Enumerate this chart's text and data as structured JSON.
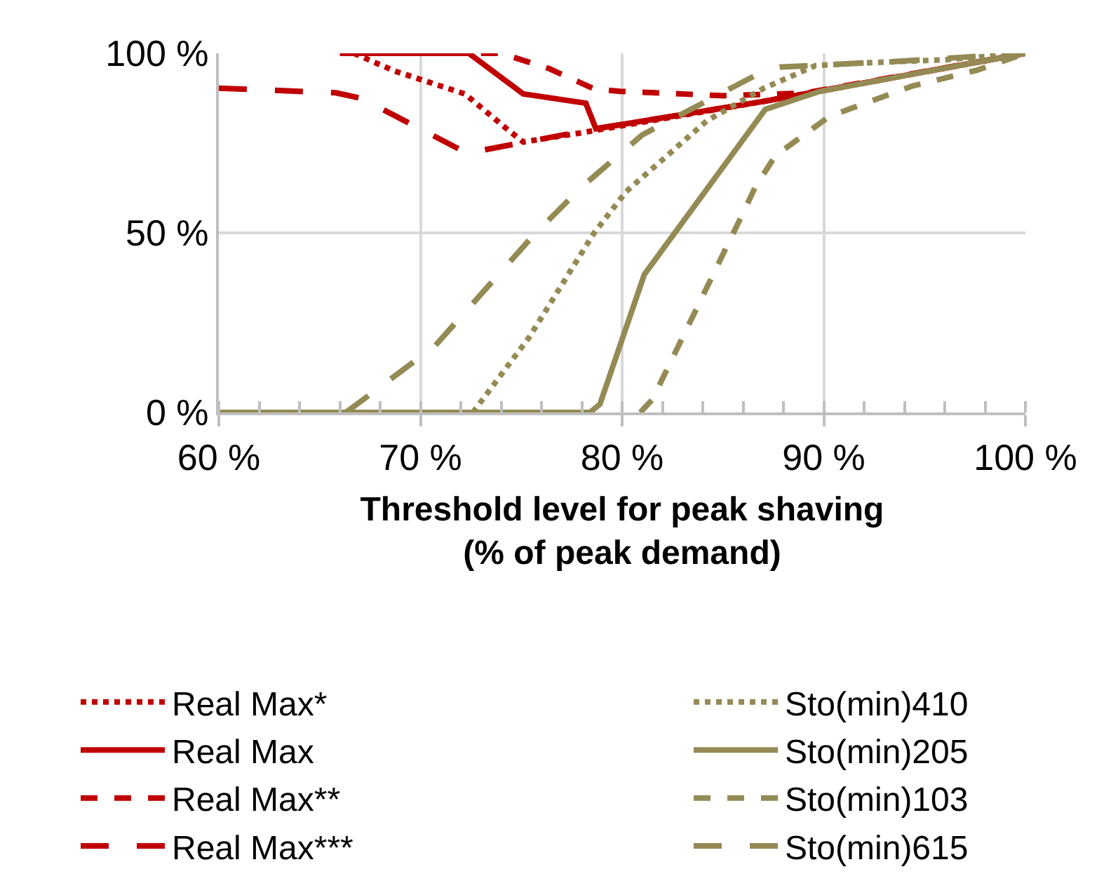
{
  "chart_data": {
    "type": "line",
    "xlabel": "Threshold level for peak shaving\n(% of peak demand)",
    "xlim": [
      60,
      100
    ],
    "xticks": [
      {
        "value": 60,
        "label": "60 %"
      },
      {
        "value": 70,
        "label": "70 %"
      },
      {
        "value": 80,
        "label": "80 %"
      },
      {
        "value": 90,
        "label": "90 %"
      },
      {
        "value": 100,
        "label": "100 %"
      }
    ],
    "ylim": [
      0,
      100
    ],
    "yticks": [
      {
        "value": 0,
        "label": "0 %"
      },
      {
        "value": 50,
        "label": "50 %"
      },
      {
        "value": 100,
        "label": "100 %"
      }
    ],
    "grid": true,
    "legend": "bottom",
    "marker": "none",
    "series": [
      {
        "name": "Real Max*",
        "color": "#c00000",
        "line_style": "dotted",
        "x": [
          66.7,
          68.7,
          72.2,
          74.4,
          75.1,
          77.8,
          87.1,
          100
        ],
        "values": [
          100,
          95.1,
          88.7,
          78.4,
          75.3,
          77.7,
          86.7,
          100
        ]
      },
      {
        "name": "Real Max",
        "color": "#c00000",
        "line_style": "solid",
        "x": [
          66.0,
          72.4,
          75.1,
          78.2,
          78.7,
          87.1,
          100
        ],
        "values": [
          100,
          100,
          88.7,
          86.1,
          79.0,
          86.7,
          100
        ]
      },
      {
        "name": "Real Max**",
        "color": "#c00000",
        "line_style": "dashed",
        "x": [
          73.0,
          74.0,
          76.4,
          78.6,
          79.9,
          85.0,
          89.0,
          100
        ],
        "values": [
          100,
          100,
          95.7,
          90.1,
          89.4,
          88.2,
          88.9,
          100
        ]
      },
      {
        "name": "Real Max***",
        "color": "#c00000",
        "line_style": "longdash",
        "x": [
          60,
          65.8,
          67.1,
          72.3,
          78.7,
          87.1,
          100
        ],
        "values": [
          90.3,
          89.0,
          87.4,
          72.2,
          79.0,
          86.7,
          100
        ]
      },
      {
        "name": "Sto(min)410",
        "color": "#948a54",
        "line_style": "dotted",
        "x": [
          72.6,
          75.4,
          78.6,
          80.2,
          84.2,
          87.0,
          89.6,
          91.9,
          96.0,
          100
        ],
        "values": [
          0,
          21.0,
          49.9,
          61.5,
          81.2,
          90.2,
          96.6,
          97.3,
          98.2,
          100
        ]
      },
      {
        "name": "Sto(min)205",
        "color": "#948a54",
        "line_style": "solid",
        "x": [
          60,
          78.4,
          78.9,
          81.1,
          87.1,
          89.8,
          100
        ],
        "values": [
          0,
          0,
          2.3,
          38.4,
          84.4,
          89.4,
          100
        ]
      },
      {
        "name": "Sto(min)103",
        "color": "#948a54",
        "line_style": "dashed",
        "x": [
          80.9,
          81.5,
          85.9,
          86.6,
          87.6,
          90.3,
          94.4,
          97.6,
          100
        ],
        "values": [
          0,
          3.6,
          54.4,
          62.7,
          71.5,
          82.5,
          90.9,
          95.3,
          100
        ]
      },
      {
        "name": "Sto(min)615",
        "color": "#948a54",
        "line_style": "longdash",
        "x": [
          66.3,
          70.7,
          75.6,
          78.0,
          81.0,
          87.1,
          87.9,
          93.5,
          100
        ],
        "values": [
          0,
          18.4,
          49.3,
          62.8,
          77.3,
          95.3,
          96.2,
          97.7,
          100
        ]
      }
    ]
  }
}
